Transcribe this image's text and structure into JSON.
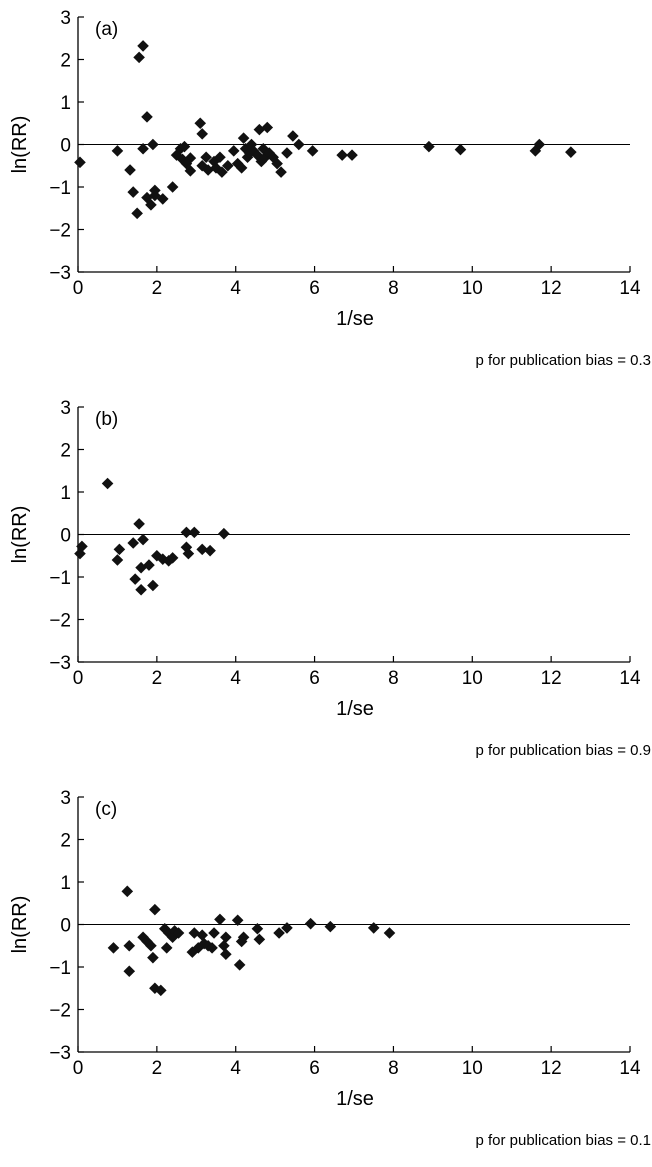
{
  "chart_data": [
    {
      "type": "scatter",
      "panel_label": "(a)",
      "xlabel": "1/se",
      "ylabel": "ln(RR)",
      "xlim": [
        0,
        14
      ],
      "ylim": [
        -3,
        3
      ],
      "x_ticks": [
        "0",
        "2",
        "4",
        "6",
        "8",
        "10",
        "12",
        "14"
      ],
      "y_ticks": [
        "3",
        "2",
        "1",
        "0",
        "−1",
        "−2",
        "−3"
      ],
      "reference_line_y": 0,
      "note": "p for publication bias = 0.3",
      "marker": "diamond",
      "marker_color": "#111111",
      "points": [
        [
          0.05,
          -0.42
        ],
        [
          1.0,
          -0.15
        ],
        [
          1.32,
          -0.6
        ],
        [
          1.4,
          -1.12
        ],
        [
          1.5,
          -1.62
        ],
        [
          1.55,
          2.05
        ],
        [
          1.65,
          2.32
        ],
        [
          1.65,
          -0.1
        ],
        [
          1.75,
          0.65
        ],
        [
          1.75,
          -1.25
        ],
        [
          1.85,
          -1.42
        ],
        [
          1.9,
          0.0
        ],
        [
          1.95,
          -1.08
        ],
        [
          1.95,
          -1.2
        ],
        [
          2.15,
          -1.28
        ],
        [
          2.4,
          -1.0
        ],
        [
          2.5,
          -0.25
        ],
        [
          2.6,
          -0.1
        ],
        [
          2.65,
          -0.35
        ],
        [
          2.7,
          -0.05
        ],
        [
          2.75,
          -0.45
        ],
        [
          2.85,
          -0.62
        ],
        [
          2.85,
          -0.32
        ],
        [
          3.1,
          0.5
        ],
        [
          3.15,
          0.25
        ],
        [
          3.15,
          -0.5
        ],
        [
          3.25,
          -0.3
        ],
        [
          3.3,
          -0.6
        ],
        [
          3.45,
          -0.4
        ],
        [
          3.5,
          -0.55
        ],
        [
          3.6,
          -0.3
        ],
        [
          3.65,
          -0.65
        ],
        [
          3.8,
          -0.5
        ],
        [
          3.95,
          -0.15
        ],
        [
          4.05,
          -0.45
        ],
        [
          4.15,
          -0.55
        ],
        [
          4.2,
          0.15
        ],
        [
          4.25,
          -0.1
        ],
        [
          4.3,
          -0.3
        ],
        [
          4.35,
          -0.2
        ],
        [
          4.4,
          0.0
        ],
        [
          4.45,
          -0.15
        ],
        [
          4.55,
          -0.25
        ],
        [
          4.6,
          0.35
        ],
        [
          4.65,
          -0.4
        ],
        [
          4.7,
          -0.1
        ],
        [
          4.75,
          -0.3
        ],
        [
          4.8,
          0.4
        ],
        [
          4.85,
          -0.2
        ],
        [
          4.95,
          -0.3
        ],
        [
          5.05,
          -0.45
        ],
        [
          5.15,
          -0.65
        ],
        [
          5.3,
          -0.2
        ],
        [
          5.45,
          0.2
        ],
        [
          5.6,
          0.0
        ],
        [
          5.95,
          -0.15
        ],
        [
          6.7,
          -0.25
        ],
        [
          6.95,
          -0.25
        ],
        [
          8.9,
          -0.05
        ],
        [
          9.7,
          -0.12
        ],
        [
          11.6,
          -0.15
        ],
        [
          11.7,
          0.0
        ],
        [
          12.5,
          -0.18
        ]
      ]
    },
    {
      "type": "scatter",
      "panel_label": "(b)",
      "xlabel": "1/se",
      "ylabel": "ln(RR)",
      "xlim": [
        0,
        14
      ],
      "ylim": [
        -3,
        3
      ],
      "x_ticks": [
        "0",
        "2",
        "4",
        "6",
        "8",
        "10",
        "12",
        "14"
      ],
      "y_ticks": [
        "3",
        "2",
        "1",
        "0",
        "−1",
        "−2",
        "−3"
      ],
      "reference_line_y": 0,
      "note": "p for publication bias = 0.9",
      "marker": "diamond",
      "marker_color": "#111111",
      "points": [
        [
          0.05,
          -0.45
        ],
        [
          0.1,
          -0.28
        ],
        [
          0.75,
          1.2
        ],
        [
          1.0,
          -0.6
        ],
        [
          1.05,
          -0.35
        ],
        [
          1.4,
          -0.2
        ],
        [
          1.45,
          -1.05
        ],
        [
          1.55,
          0.25
        ],
        [
          1.6,
          -0.78
        ],
        [
          1.6,
          -1.3
        ],
        [
          1.65,
          -0.12
        ],
        [
          1.8,
          -0.72
        ],
        [
          1.9,
          -1.2
        ],
        [
          2.0,
          -0.5
        ],
        [
          2.15,
          -0.58
        ],
        [
          2.3,
          -0.62
        ],
        [
          2.4,
          -0.55
        ],
        [
          2.75,
          -0.3
        ],
        [
          2.75,
          0.05
        ],
        [
          2.8,
          -0.45
        ],
        [
          2.95,
          0.05
        ],
        [
          3.15,
          -0.35
        ],
        [
          3.35,
          -0.38
        ],
        [
          3.7,
          0.02
        ]
      ]
    },
    {
      "type": "scatter",
      "panel_label": "(c)",
      "xlabel": "1/se",
      "ylabel": "ln(RR)",
      "xlim": [
        0,
        14
      ],
      "ylim": [
        -3,
        3
      ],
      "x_ticks": [
        "0",
        "2",
        "4",
        "6",
        "8",
        "10",
        "12",
        "14"
      ],
      "y_ticks": [
        "3",
        "2",
        "1",
        "0",
        "−1",
        "−2",
        "−3"
      ],
      "reference_line_y": 0,
      "note": "p for publication bias = 0.1",
      "marker": "diamond",
      "marker_color": "#111111",
      "points": [
        [
          0.9,
          -0.55
        ],
        [
          1.25,
          0.78
        ],
        [
          1.3,
          -0.5
        ],
        [
          1.3,
          -1.1
        ],
        [
          1.65,
          -0.3
        ],
        [
          1.75,
          -0.4
        ],
        [
          1.85,
          -0.5
        ],
        [
          1.9,
          -0.78
        ],
        [
          1.95,
          0.35
        ],
        [
          1.95,
          -1.5
        ],
        [
          2.1,
          -1.55
        ],
        [
          2.2,
          -0.1
        ],
        [
          2.25,
          -0.55
        ],
        [
          2.3,
          -0.2
        ],
        [
          2.4,
          -0.3
        ],
        [
          2.45,
          -0.15
        ],
        [
          2.55,
          -0.2
        ],
        [
          2.9,
          -0.65
        ],
        [
          2.95,
          -0.2
        ],
        [
          3.05,
          -0.55
        ],
        [
          3.15,
          -0.25
        ],
        [
          3.2,
          -0.45
        ],
        [
          3.3,
          -0.5
        ],
        [
          3.4,
          -0.55
        ],
        [
          3.45,
          -0.2
        ],
        [
          3.6,
          0.12
        ],
        [
          3.7,
          -0.5
        ],
        [
          3.75,
          -0.7
        ],
        [
          3.75,
          -0.3
        ],
        [
          4.05,
          0.1
        ],
        [
          4.1,
          -0.95
        ],
        [
          4.15,
          -0.4
        ],
        [
          4.2,
          -0.3
        ],
        [
          4.55,
          -0.1
        ],
        [
          4.6,
          -0.35
        ],
        [
          5.1,
          -0.2
        ],
        [
          5.3,
          -0.08
        ],
        [
          5.9,
          0.02
        ],
        [
          6.4,
          -0.05
        ],
        [
          7.5,
          -0.08
        ],
        [
          7.9,
          -0.2
        ]
      ]
    }
  ]
}
